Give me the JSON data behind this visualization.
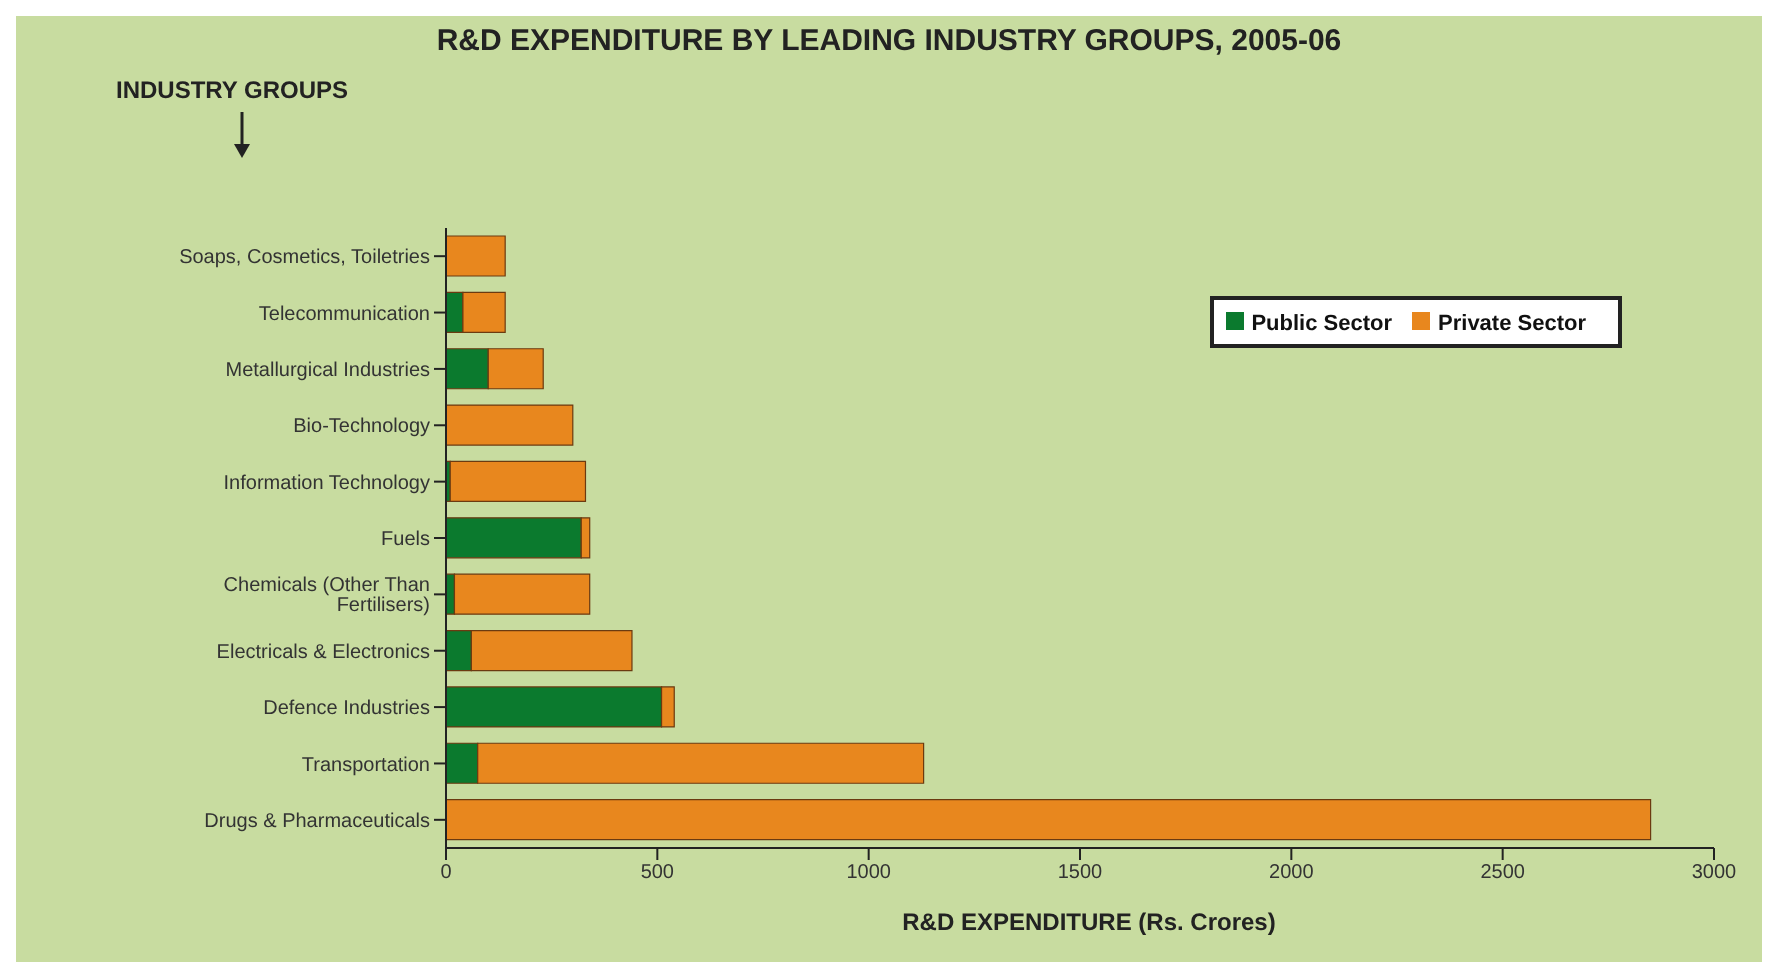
{
  "chart_data": {
    "type": "bar",
    "orientation": "horizontal",
    "stacked": true,
    "title": "R&D EXPENDITURE BY LEADING INDUSTRY GROUPS, 2005-06",
    "xlabel": "R&D EXPENDITURE (Rs. Crores)",
    "annotations": [
      "INDUSTRY GROUPS"
    ],
    "categories": [
      "Soaps, Cosmetics, Toiletries",
      "Telecommunication",
      "Metallurgical Industries",
      "Bio-Technology",
      "Information Technology",
      "Fuels",
      "Chemicals (Other Than Fertilisers)",
      "Electricals & Electronics",
      "Defence Industries",
      "Transportation",
      "Drugs & Pharmaceuticals"
    ],
    "series": [
      {
        "name": "Public Sector",
        "color": "#0b7a2e",
        "values": [
          0,
          40,
          100,
          0,
          10,
          320,
          20,
          60,
          510,
          75,
          0
        ]
      },
      {
        "name": "Private Sector",
        "color": "#e8871e",
        "values": [
          140,
          100,
          130,
          300,
          320,
          20,
          320,
          380,
          30,
          1055,
          2850
        ]
      }
    ],
    "xlim": [
      0,
      3000
    ],
    "xticks": [
      0,
      500,
      1000,
      1500,
      2000,
      2500,
      3000
    ],
    "legend": "top right"
  }
}
